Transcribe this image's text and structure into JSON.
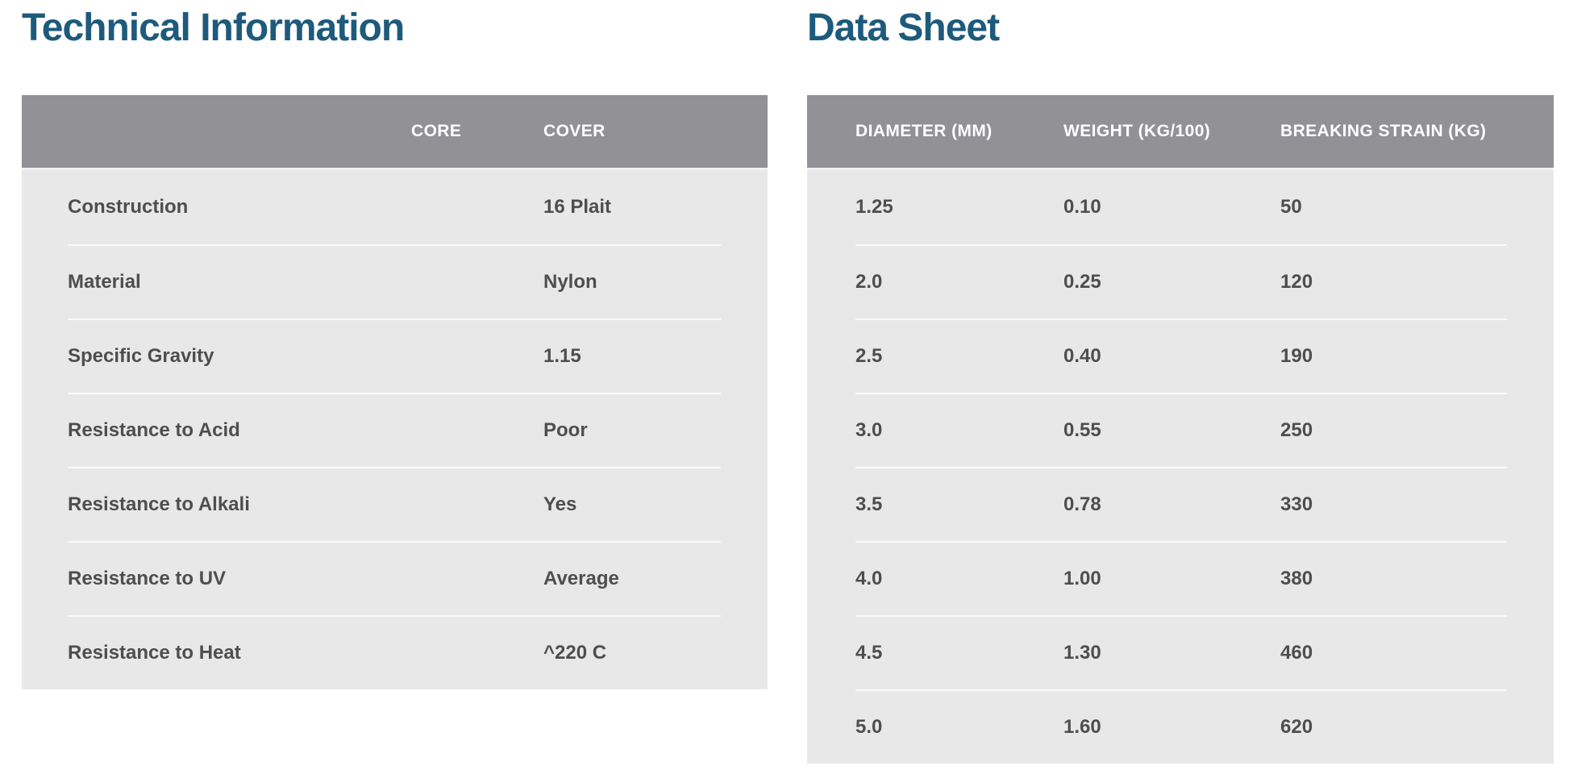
{
  "colors": {
    "title_blue": "#1d5a7c",
    "header_bg": "#919196",
    "header_text": "#ffffff",
    "body_bg": "#e8e8e8",
    "body_text": "#4e4e50",
    "row_divider": "#fafafa",
    "page_bg": "#ffffff"
  },
  "technical_information": {
    "title": "Technical Information",
    "headers": {
      "label": "",
      "core": "CORE",
      "cover": "COVER"
    },
    "rows": [
      {
        "label": "Construction",
        "core": "",
        "cover": "16 Plait"
      },
      {
        "label": "Material",
        "core": "",
        "cover": "Nylon"
      },
      {
        "label": "Specific Gravity",
        "core": "",
        "cover": "1.15"
      },
      {
        "label": "Resistance to Acid",
        "core": "",
        "cover": "Poor"
      },
      {
        "label": "Resistance to Alkali",
        "core": "",
        "cover": "Yes"
      },
      {
        "label": "Resistance to UV",
        "core": "",
        "cover": "Average"
      },
      {
        "label": "Resistance to Heat",
        "core": "",
        "cover": "^220 C"
      }
    ]
  },
  "data_sheet": {
    "title": "Data Sheet",
    "headers": {
      "diameter": "DIAMETER (MM)",
      "weight": "WEIGHT (KG/100)",
      "breaking_strain": "BREAKING STRAIN (KG)"
    },
    "rows": [
      {
        "diameter": "1.25",
        "weight": "0.10",
        "breaking_strain": "50"
      },
      {
        "diameter": "2.0",
        "weight": "0.25",
        "breaking_strain": "120"
      },
      {
        "diameter": "2.5",
        "weight": "0.40",
        "breaking_strain": "190"
      },
      {
        "diameter": "3.0",
        "weight": "0.55",
        "breaking_strain": "250"
      },
      {
        "diameter": "3.5",
        "weight": "0.78",
        "breaking_strain": "330"
      },
      {
        "diameter": "4.0",
        "weight": "1.00",
        "breaking_strain": "380"
      },
      {
        "diameter": "4.5",
        "weight": "1.30",
        "breaking_strain": "460"
      },
      {
        "diameter": "5.0",
        "weight": "1.60",
        "breaking_strain": "620"
      }
    ]
  }
}
